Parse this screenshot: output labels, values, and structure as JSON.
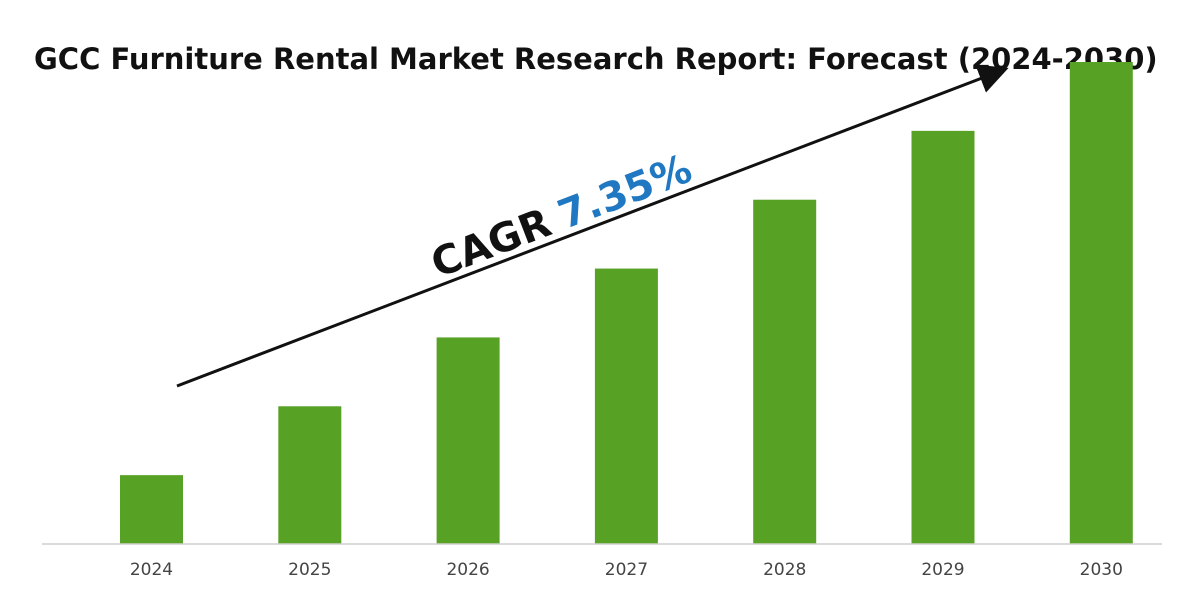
{
  "chart_data": {
    "type": "bar",
    "title": "GCC Furniture Rental Market Research Report: Forecast (2024-2030)",
    "categories": [
      "2024",
      "2025",
      "2026",
      "2027",
      "2028",
      "2029",
      "2030"
    ],
    "values": [
      1.0,
      2.0,
      3.0,
      4.0,
      5.0,
      6.0,
      7.0
    ],
    "xlabel": "",
    "ylabel": "",
    "ylim": [
      0,
      7
    ],
    "grid": false,
    "annotation": {
      "prefix": "CAGR",
      "value": "7.35%"
    },
    "colors": {
      "bar": "#57a125",
      "cagr_value": "#1f78c1",
      "text": "#111111",
      "tick": "#444444"
    }
  }
}
